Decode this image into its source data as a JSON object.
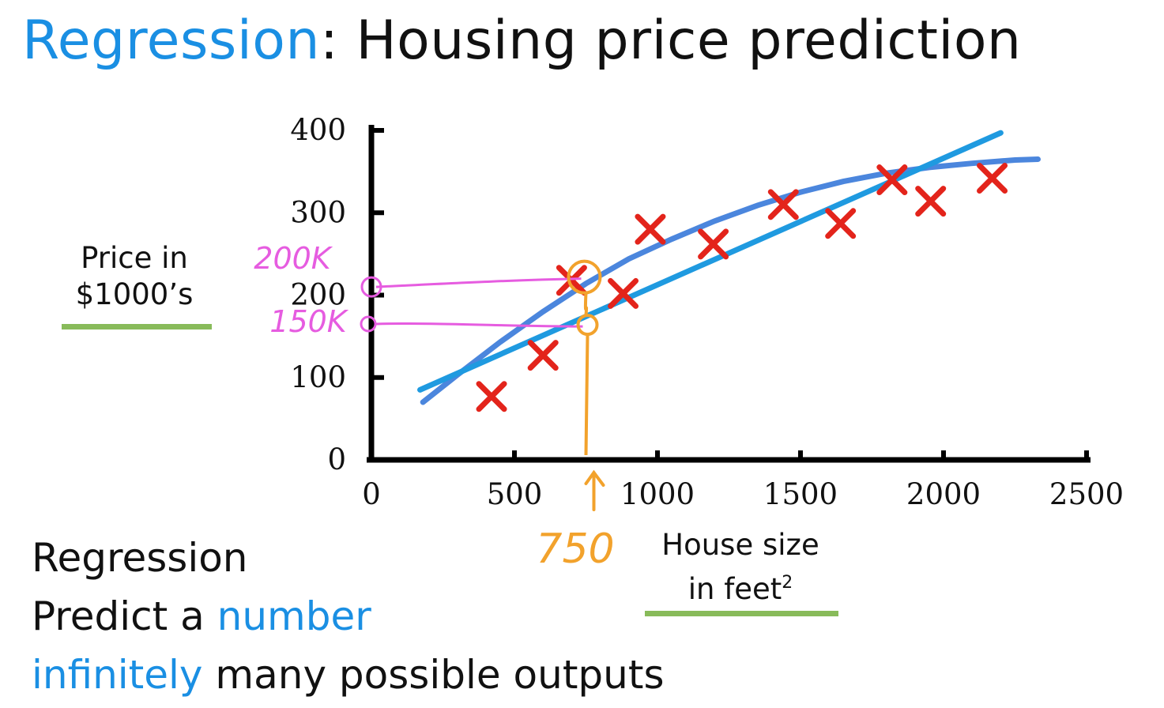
{
  "header": {
    "title_accent": "Regression",
    "title_rest": ": Housing price prediction"
  },
  "y_axis_label": {
    "line1": "Price in",
    "line2": "$1000’s"
  },
  "x_axis_label": {
    "line1": "House size",
    "line2_text": "in feet",
    "line2_sup": "2"
  },
  "annotations": {
    "pink_high": "200K",
    "pink_low": "150K",
    "orange_x": "750"
  },
  "bottom": {
    "heading": "Regression",
    "line2_a": "Predict a ",
    "line2_b": "number",
    "line3_a": "infinitely",
    "line3_b": " many possible outputs"
  },
  "colors": {
    "accent_blue": "#1a8fe3",
    "line_blue": "#1f9ae0",
    "curve_blue": "#4b86dd",
    "cross_red": "#e3241b",
    "pink": "#e65ce0",
    "orange": "#f2a22c",
    "green_rule": "#88bb5a"
  },
  "chart_data": {
    "type": "scatter",
    "xlim": [
      0,
      2500
    ],
    "ylim": [
      0,
      400
    ],
    "x_ticks": [
      0,
      500,
      1000,
      1500,
      2000,
      2500
    ],
    "y_ticks": [
      0,
      100,
      200,
      300,
      400
    ],
    "grid": false,
    "points": [
      {
        "x": 420,
        "y": 77
      },
      {
        "x": 600,
        "y": 127
      },
      {
        "x": 700,
        "y": 218
      },
      {
        "x": 880,
        "y": 202
      },
      {
        "x": 975,
        "y": 280
      },
      {
        "x": 1195,
        "y": 262
      },
      {
        "x": 1440,
        "y": 310
      },
      {
        "x": 1640,
        "y": 287
      },
      {
        "x": 1820,
        "y": 340
      },
      {
        "x": 1955,
        "y": 314
      },
      {
        "x": 2170,
        "y": 342
      }
    ],
    "linear_fit": {
      "x": [
        170,
        2200
      ],
      "y": [
        85,
        397
      ]
    },
    "curve_fit": {
      "x": [
        180,
        300,
        450,
        600,
        750,
        900,
        1050,
        1200,
        1350,
        1500,
        1650,
        1800,
        1950,
        2100,
        2250,
        2330
      ],
      "y": [
        70,
        103,
        143,
        180,
        214,
        244,
        268,
        290,
        309,
        325,
        338,
        348,
        355,
        360,
        364,
        365
      ]
    },
    "markers": {
      "query_x": 750,
      "pred_high": 220,
      "pred_low": 162,
      "axis_mark_high": 210,
      "axis_mark_low": 165
    }
  }
}
